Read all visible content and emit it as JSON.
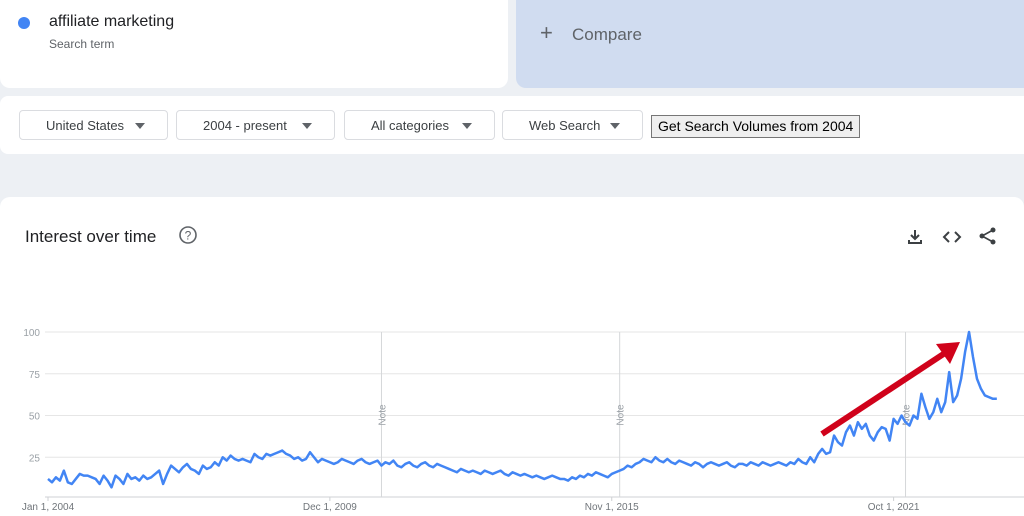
{
  "ui": {
    "compare": "Compare",
    "filters": [
      "United States",
      "2004 - present",
      "All categories",
      "Web Search"
    ],
    "button": "Get Search Volumes from 2004"
  },
  "chart_data": {
    "type": "line",
    "title": "Interest over time",
    "series_caption": "Search term",
    "series": [
      {
        "name": "affiliate marketing",
        "color": "#4285f4",
        "values": [
          12,
          10,
          13,
          11,
          17,
          10,
          9,
          12,
          15,
          14,
          14,
          13,
          12,
          9,
          14,
          11,
          7,
          14,
          12,
          9,
          15,
          12,
          13,
          11,
          14,
          12,
          13,
          15,
          17,
          9,
          15,
          20,
          18,
          16,
          19,
          21,
          18,
          17,
          15,
          20,
          18,
          19,
          22,
          20,
          25,
          23,
          26,
          24,
          23,
          24,
          23,
          22,
          27,
          25,
          24,
          27,
          26,
          27,
          28,
          29,
          27,
          26,
          24,
          25,
          23,
          24,
          28,
          25,
          22,
          24,
          23,
          22,
          21,
          22,
          24,
          23,
          22,
          21,
          23,
          24,
          22,
          21,
          22,
          23,
          20,
          22,
          21,
          23,
          20,
          19,
          21,
          22,
          20,
          19,
          21,
          22,
          20,
          19,
          21,
          20,
          19,
          18,
          17,
          16,
          18,
          17,
          16,
          17,
          16,
          15,
          17,
          16,
          15,
          16,
          17,
          15,
          14,
          16,
          15,
          14,
          15,
          14,
          13,
          14,
          13,
          12,
          13,
          14,
          13,
          12,
          12,
          11,
          13,
          12,
          14,
          13,
          15,
          14,
          16,
          15,
          14,
          13,
          15,
          16,
          17,
          18,
          20,
          19,
          21,
          22,
          24,
          23,
          22,
          25,
          23,
          22,
          24,
          22,
          21,
          23,
          22,
          21,
          20,
          22,
          21,
          19,
          21,
          22,
          21,
          20,
          21,
          22,
          20,
          19,
          21,
          21,
          20,
          22,
          21,
          20,
          22,
          21,
          20,
          21,
          22,
          21,
          20,
          22,
          21,
          24,
          22,
          21,
          25,
          22,
          27,
          30,
          27,
          28,
          38,
          34,
          32,
          40,
          44,
          38,
          46,
          42,
          45,
          38,
          35,
          40,
          43,
          42,
          35,
          48,
          45,
          50,
          46,
          44,
          50,
          48,
          63,
          55,
          48,
          52,
          60,
          52,
          58,
          76,
          58,
          62,
          72,
          88,
          100,
          85,
          72,
          66,
          62,
          61,
          60,
          60
        ]
      }
    ],
    "x": [
      "2004-01-01",
      "2004-02-01",
      "2004-03-01",
      "2004-04-01",
      "2004-05-01",
      "2004-06-01",
      "2004-07-01",
      "2004-08-01",
      "2004-09-01",
      "2004-10-01",
      "2004-11-01",
      "2004-12-01",
      "2005-01-01",
      "2005-02-01",
      "2005-03-01",
      "2005-04-01",
      "2005-05-01",
      "2005-06-01",
      "2005-07-01",
      "2005-08-01",
      "2005-09-01",
      "2005-10-01",
      "2005-11-01",
      "2005-12-01",
      "2006-01-01",
      "2006-02-01",
      "2006-03-01",
      "2006-04-01",
      "2006-05-01",
      "2006-06-01",
      "2006-07-01",
      "2006-08-01",
      "2006-09-01",
      "2006-10-01",
      "2006-11-01",
      "2006-12-01",
      "2007-01-01",
      "2007-02-01",
      "2007-03-01",
      "2007-04-01",
      "2007-05-01",
      "2007-06-01",
      "2007-07-01",
      "2007-08-01",
      "2007-09-01",
      "2007-10-01",
      "2007-11-01",
      "2007-12-01",
      "2008-01-01",
      "2008-02-01",
      "2008-03-01",
      "2008-04-01",
      "2008-05-01",
      "2008-06-01",
      "2008-07-01",
      "2008-08-01",
      "2008-09-01",
      "2008-10-01",
      "2008-11-01",
      "2008-12-01",
      "2009-01-01",
      "2009-02-01",
      "2009-03-01",
      "2009-04-01",
      "2009-05-01",
      "2009-06-01",
      "2009-07-01",
      "2009-08-01",
      "2009-09-01",
      "2009-10-01",
      "2009-11-01",
      "2009-12-01",
      "2010-01-01",
      "2010-02-01",
      "2010-03-01",
      "2010-04-01",
      "2010-05-01",
      "2010-06-01",
      "2010-07-01",
      "2010-08-01",
      "2010-09-01",
      "2010-10-01",
      "2010-11-01",
      "2010-12-01",
      "2011-01-01",
      "2011-02-01",
      "2011-03-01",
      "2011-04-01",
      "2011-05-01",
      "2011-06-01",
      "2011-07-01",
      "2011-08-01",
      "2011-09-01",
      "2011-10-01",
      "2011-11-01",
      "2011-12-01",
      "2012-01-01",
      "2012-02-01",
      "2012-03-01",
      "2012-04-01",
      "2012-05-01",
      "2012-06-01",
      "2012-07-01",
      "2012-08-01",
      "2012-09-01",
      "2012-10-01",
      "2012-11-01",
      "2012-12-01",
      "2013-01-01",
      "2013-02-01",
      "2013-03-01",
      "2013-04-01",
      "2013-05-01",
      "2013-06-01",
      "2013-07-01",
      "2013-08-01",
      "2013-09-01",
      "2013-10-01",
      "2013-11-01",
      "2013-12-01",
      "2014-01-01",
      "2014-02-01",
      "2014-03-01",
      "2014-04-01",
      "2014-05-01",
      "2014-06-01",
      "2014-07-01",
      "2014-08-01",
      "2014-09-01",
      "2014-10-01",
      "2014-11-01",
      "2014-12-01",
      "2015-01-01",
      "2015-02-01",
      "2015-03-01",
      "2015-04-01",
      "2015-05-01",
      "2015-06-01",
      "2015-07-01",
      "2015-08-01",
      "2015-09-01",
      "2015-10-01",
      "2015-11-01",
      "2015-12-01",
      "2016-01-01",
      "2016-02-01",
      "2016-03-01",
      "2016-04-01",
      "2016-05-01",
      "2016-06-01",
      "2016-07-01",
      "2016-08-01",
      "2016-09-01",
      "2016-10-01",
      "2016-11-01",
      "2016-12-01",
      "2017-01-01",
      "2017-02-01",
      "2017-03-01",
      "2017-04-01",
      "2017-05-01",
      "2017-06-01",
      "2017-07-01",
      "2017-08-01",
      "2017-09-01",
      "2017-10-01",
      "2017-11-01",
      "2017-12-01",
      "2018-01-01",
      "2018-02-01",
      "2018-03-01",
      "2018-04-01",
      "2018-05-01",
      "2018-06-01",
      "2018-07-01",
      "2018-08-01",
      "2018-09-01",
      "2018-10-01",
      "2018-11-01",
      "2018-12-01",
      "2019-01-01",
      "2019-02-01",
      "2019-03-01",
      "2019-04-01",
      "2019-05-01",
      "2019-06-01",
      "2019-07-01",
      "2019-08-01",
      "2019-09-01",
      "2019-10-01",
      "2019-11-01",
      "2019-12-01",
      "2020-01-01",
      "2020-02-01",
      "2020-03-01",
      "2020-04-01",
      "2020-05-01",
      "2020-06-01",
      "2020-07-01",
      "2020-08-01",
      "2020-09-01",
      "2020-10-01",
      "2020-11-01",
      "2020-12-01",
      "2021-01-01",
      "2021-02-01",
      "2021-03-01",
      "2021-04-01",
      "2021-05-01",
      "2021-06-01",
      "2021-07-01",
      "2021-08-01",
      "2021-09-01",
      "2021-10-01",
      "2021-11-01",
      "2021-12-01",
      "2022-01-01",
      "2022-02-01",
      "2022-03-01",
      "2022-04-01",
      "2022-05-01",
      "2022-06-01",
      "2022-07-01",
      "2022-08-01",
      "2022-09-01",
      "2022-10-01",
      "2022-11-01",
      "2022-12-01",
      "2023-01-01",
      "2023-02-01",
      "2023-03-01",
      "2023-04-01",
      "2023-05-01",
      "2023-06-01",
      "2023-07-01",
      "2023-08-01",
      "2023-09-01",
      "2023-10-01",
      "2023-11-01",
      "2023-12-01"
    ],
    "xticks": [
      {
        "value": "2004-01-01",
        "label": "Jan 1, 2004"
      },
      {
        "value": "2009-12-01",
        "label": "Dec 1, 2009"
      },
      {
        "value": "2015-11-01",
        "label": "Nov 1, 2015"
      },
      {
        "value": "2021-10-01",
        "label": "Oct 1, 2021"
      }
    ],
    "ylim": [
      0,
      100
    ],
    "yticks": [
      25,
      50,
      75,
      100
    ],
    "grid": true,
    "notes": [
      {
        "x": "2011-01-01",
        "label": "Note"
      },
      {
        "x": "2016-01-01",
        "label": "Note"
      },
      {
        "x": "2022-01-01",
        "label": "Note"
      }
    ]
  }
}
